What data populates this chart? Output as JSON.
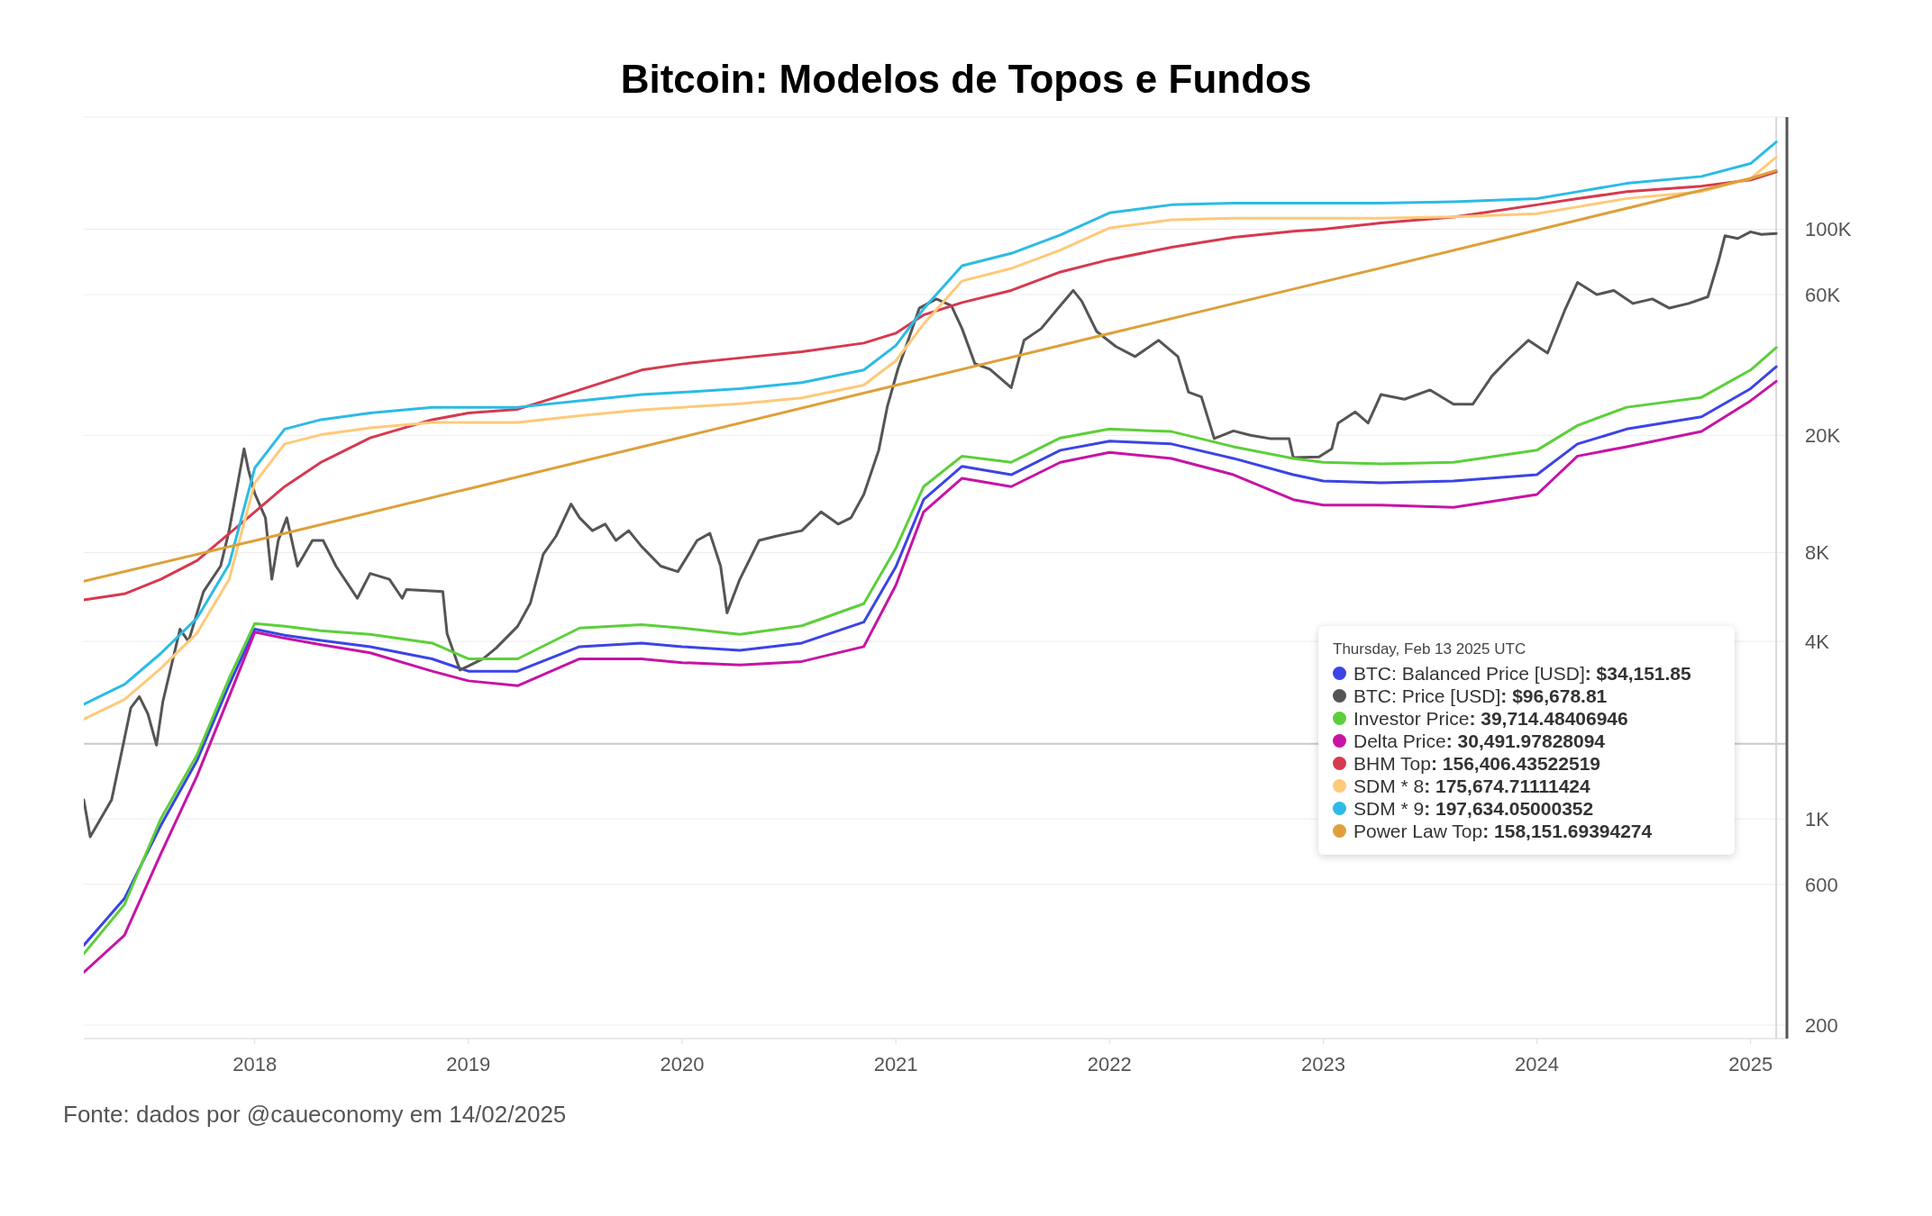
{
  "chart_data": {
    "type": "line",
    "title": "Bitcoin: Modelos de Topos e Fundos",
    "annotations": [
      "Thursday, Feb 13 2025 UTC",
      ": $34,151.85",
      ": $96,678.81",
      ": 39,714.48406946",
      ": 30,491.97828094",
      ": 156,406.43522519",
      ": 175,674.71111424",
      ": 197,634.05000352",
      ": 158,151.69394274",
      "Fonte: dados por @caueconomy em 14/02/2025"
    ],
    "xlim": [
      2017.2,
      2025.17
    ],
    "xticks": [
      2018,
      2019,
      2020,
      2021,
      2022,
      2023,
      2024,
      2025
    ],
    "ylim": [
      180,
      240000
    ],
    "log": "y",
    "yticks": [
      200,
      600,
      {
        "value": 1000,
        "label": "1K"
      },
      {
        "value": 4000,
        "label": "4K"
      },
      {
        "value": 8000,
        "label": "8K"
      },
      {
        "value": 20000,
        "label": "20K"
      },
      {
        "value": 60000,
        "label": "60K"
      },
      {
        "value": 100000,
        "label": "100K"
      }
    ],
    "grid": "y",
    "legend": "bottom right",
    "ref_lines": [
      {
        "axis": "y",
        "value": 1800,
        "color": "#c8c8c8"
      },
      {
        "axis": "x",
        "value": 2025.12,
        "color": "#d9d9d9"
      }
    ],
    "series": [
      {
        "name": "BTC: Balanced Price [USD]",
        "color": "#3b44e6",
        "x": [
          2017.2,
          2017.39,
          2017.56,
          2017.73,
          2017.88,
          2018.0,
          2018.14,
          2018.31,
          2018.54,
          2018.83,
          2019.0,
          2019.23,
          2019.52,
          2019.81,
          2020.0,
          2020.27,
          2020.56,
          2020.85,
          2021.0,
          2021.13,
          2021.31,
          2021.54,
          2021.77,
          2022.0,
          2022.29,
          2022.58,
          2022.86,
          2023.0,
          2023.27,
          2023.61,
          2024.0,
          2024.19,
          2024.42,
          2024.77,
          2025.0,
          2025.12
        ],
        "values": [
          373,
          537,
          950,
          1580,
          2850,
          4400,
          4200,
          4030,
          3840,
          3490,
          3170,
          3170,
          3840,
          3950,
          3840,
          3730,
          3950,
          4650,
          7160,
          12100,
          15700,
          14700,
          17800,
          19100,
          18700,
          16700,
          14700,
          14000,
          13800,
          14000,
          14700,
          18700,
          21000,
          23100,
          28800,
          34151.85
        ]
      },
      {
        "name": "BTC: Price [USD]",
        "color": "#555555",
        "x": [
          2017.2,
          2017.23,
          2017.33,
          2017.39,
          2017.42,
          2017.46,
          2017.5,
          2017.54,
          2017.57,
          2017.65,
          2017.69,
          2017.76,
          2017.84,
          2017.88,
          2017.95,
          2017.97,
          2018.0,
          2018.05,
          2018.08,
          2018.11,
          2018.15,
          2018.2,
          2018.27,
          2018.32,
          2018.38,
          2018.44,
          2018.48,
          2018.54,
          2018.63,
          2018.69,
          2018.71,
          2018.88,
          2018.9,
          2018.96,
          2019.0,
          2019.07,
          2019.13,
          2019.23,
          2019.29,
          2019.35,
          2019.41,
          2019.48,
          2019.52,
          2019.58,
          2019.64,
          2019.69,
          2019.75,
          2019.81,
          2019.9,
          2019.98,
          2020.07,
          2020.13,
          2020.18,
          2020.21,
          2020.27,
          2020.36,
          2020.44,
          2020.56,
          2020.65,
          2020.73,
          2020.79,
          2020.85,
          2020.92,
          2020.96,
          2021.01,
          2021.05,
          2021.11,
          2021.19,
          2021.26,
          2021.31,
          2021.37,
          2021.44,
          2021.54,
          2021.6,
          2021.68,
          2021.76,
          2021.83,
          2021.87,
          2021.94,
          2022.03,
          2022.12,
          2022.23,
          2022.32,
          2022.37,
          2022.43,
          2022.49,
          2022.58,
          2022.66,
          2022.75,
          2022.84,
          2022.86,
          2022.98,
          2023.04,
          2023.07,
          2023.15,
          2023.21,
          2023.27,
          2023.38,
          2023.5,
          2023.61,
          2023.7,
          2023.79,
          2023.87,
          2023.96,
          2024.05,
          2024.13,
          2024.19,
          2024.28,
          2024.36,
          2024.45,
          2024.54,
          2024.62,
          2024.71,
          2024.8,
          2024.85,
          2024.88,
          2024.94,
          2025.0,
          2025.05,
          2025.12
        ],
        "values": [
          1160,
          870,
          1160,
          1870,
          2380,
          2600,
          2270,
          1780,
          2500,
          4400,
          4000,
          5900,
          7200,
          9500,
          18000,
          15300,
          12700,
          10500,
          6500,
          8800,
          10500,
          7200,
          8800,
          8800,
          7200,
          6200,
          5600,
          6800,
          6500,
          5600,
          6000,
          5900,
          4250,
          3200,
          3300,
          3500,
          3800,
          4500,
          5400,
          7900,
          9100,
          11700,
          10500,
          9500,
          10000,
          8800,
          9500,
          8400,
          7200,
          6900,
          8800,
          9300,
          7200,
          5000,
          6500,
          8800,
          9100,
          9500,
          11000,
          10000,
          10500,
          12600,
          17800,
          25000,
          33600,
          40500,
          54000,
          58000,
          55000,
          46000,
          35000,
          33500,
          29000,
          42000,
          46000,
          54000,
          62000,
          57000,
          45000,
          40000,
          37000,
          42000,
          37000,
          28000,
          27000,
          19500,
          20700,
          20000,
          19500,
          19500,
          16800,
          16900,
          18000,
          22000,
          24000,
          22000,
          27500,
          26500,
          28500,
          25500,
          25500,
          31800,
          36500,
          42000,
          38000,
          53000,
          66000,
          60000,
          62000,
          56000,
          58000,
          54000,
          56000,
          59000,
          78000,
          95000,
          93000,
          98000,
          96000,
          96678.81
        ]
      },
      {
        "name": "Investor Price",
        "color": "#5ccf3a",
        "x": [
          2017.2,
          2017.39,
          2017.56,
          2017.73,
          2017.88,
          2018.0,
          2018.14,
          2018.31,
          2018.54,
          2018.83,
          2019.0,
          2019.23,
          2019.52,
          2019.81,
          2020.0,
          2020.27,
          2020.56,
          2020.85,
          2021.0,
          2021.13,
          2021.31,
          2021.54,
          2021.77,
          2022.0,
          2022.29,
          2022.58,
          2022.86,
          2023.0,
          2023.27,
          2023.61,
          2024.0,
          2024.19,
          2024.42,
          2024.77,
          2025.0,
          2025.12
        ],
        "values": [
          349,
          512,
          1000,
          1650,
          3000,
          4600,
          4500,
          4350,
          4230,
          3950,
          3490,
          3490,
          4440,
          4560,
          4440,
          4230,
          4520,
          5370,
          8270,
          13400,
          17000,
          16200,
          19600,
          21000,
          20600,
          18300,
          16700,
          16200,
          16000,
          16200,
          17800,
          21600,
          24900,
          26900,
          33300,
          39714.48
        ]
      },
      {
        "name": "Delta Price",
        "color": "#c614a4",
        "x": [
          2017.2,
          2017.39,
          2017.56,
          2017.73,
          2017.88,
          2018.0,
          2018.14,
          2018.31,
          2018.54,
          2018.83,
          2019.0,
          2019.23,
          2019.52,
          2019.81,
          2020.0,
          2020.27,
          2020.56,
          2020.85,
          2021.0,
          2021.13,
          2021.31,
          2021.54,
          2021.77,
          2022.0,
          2022.29,
          2022.58,
          2022.86,
          2023.0,
          2023.27,
          2023.61,
          2024.0,
          2024.19,
          2024.42,
          2024.77,
          2025.0,
          2025.12
        ],
        "values": [
          302,
          403,
          760,
          1400,
          2600,
          4300,
          4100,
          3900,
          3660,
          3170,
          2940,
          2830,
          3490,
          3490,
          3390,
          3330,
          3420,
          3840,
          6200,
          11000,
          14300,
          13400,
          16200,
          17500,
          16700,
          14700,
          12100,
          11600,
          11600,
          11400,
          12600,
          17000,
          18300,
          20600,
          26200,
          30491.98
        ]
      },
      {
        "name": "BHM Top",
        "color": "#d6394f",
        "x": [
          2017.2,
          2017.39,
          2017.56,
          2017.73,
          2017.88,
          2018.0,
          2018.14,
          2018.31,
          2018.54,
          2018.83,
          2019.0,
          2019.23,
          2019.52,
          2019.81,
          2020.0,
          2020.27,
          2020.56,
          2020.85,
          2021.0,
          2021.13,
          2021.31,
          2021.54,
          2021.77,
          2022.0,
          2022.29,
          2022.58,
          2022.86,
          2023.0,
          2023.27,
          2023.61,
          2024.0,
          2024.19,
          2024.42,
          2024.77,
          2025.0,
          2025.12
        ],
        "values": [
          5530,
          5800,
          6500,
          7520,
          9280,
          11000,
          13400,
          16200,
          19600,
          22600,
          23800,
          24500,
          28500,
          33300,
          34900,
          36600,
          38400,
          41100,
          44400,
          51200,
          56400,
          62000,
          71600,
          78900,
          86800,
          93800,
          98400,
          100000,
          105000,
          110000,
          121000,
          127000,
          134000,
          140000,
          147000,
          156406.44
        ]
      },
      {
        "name": "SDM * 8",
        "color": "#ffc97a",
        "x": [
          2017.2,
          2017.39,
          2017.56,
          2017.73,
          2017.88,
          2018.0,
          2018.14,
          2018.31,
          2018.54,
          2018.83,
          2019.0,
          2019.23,
          2019.52,
          2019.81,
          2020.0,
          2020.27,
          2020.56,
          2020.85,
          2021.0,
          2021.13,
          2021.31,
          2021.54,
          2021.77,
          2022.0,
          2022.29,
          2022.58,
          2022.86,
          2023.0,
          2023.27,
          2023.61,
          2024.0,
          2024.19,
          2024.42,
          2024.77,
          2025.0,
          2025.12
        ],
        "values": [
          2180,
          2540,
          3240,
          4270,
          6490,
          13800,
          18700,
          20100,
          21200,
          22100,
          22100,
          22100,
          23300,
          24400,
          24900,
          25600,
          26800,
          29600,
          35800,
          47700,
          66800,
          73600,
          85000,
          101000,
          107600,
          109000,
          109000,
          109000,
          109000,
          110200,
          112900,
          119100,
          127100,
          134200,
          148400,
          175674.71
        ]
      },
      {
        "name": "SDM * 9",
        "color": "#2bbbe6",
        "x": [
          2017.2,
          2017.39,
          2017.56,
          2017.73,
          2017.88,
          2018.0,
          2018.14,
          2018.31,
          2018.54,
          2018.83,
          2019.0,
          2019.23,
          2019.52,
          2019.81,
          2020.0,
          2020.27,
          2020.56,
          2020.85,
          2021.0,
          2021.13,
          2021.31,
          2021.54,
          2021.77,
          2022.0,
          2022.29,
          2022.58,
          2022.86,
          2023.0,
          2023.27,
          2023.61,
          2024.0,
          2024.19,
          2024.42,
          2024.77,
          2025.0,
          2025.12
        ],
        "values": [
          2450,
          2860,
          3640,
          4800,
          7300,
          15500,
          21000,
          22600,
          23800,
          24900,
          24900,
          24900,
          26200,
          27500,
          28000,
          28800,
          30200,
          33300,
          40300,
          53700,
          75200,
          82800,
          95600,
          113600,
          121000,
          122600,
          122600,
          122600,
          122600,
          124000,
          127000,
          134000,
          143000,
          151000,
          167000,
          197634.05
        ]
      },
      {
        "name": "Power Law Top",
        "color": "#dea03a",
        "x": [
          2017.2,
          2018.0,
          2019.0,
          2020.0,
          2021.0,
          2022.0,
          2023.0,
          2024.0,
          2025.0,
          2025.12
        ],
        "values": [
          6400,
          8790,
          13170,
          19730,
          29550,
          44270,
          66300,
          99300,
          148800,
          158151.69
        ]
      }
    ]
  }
}
